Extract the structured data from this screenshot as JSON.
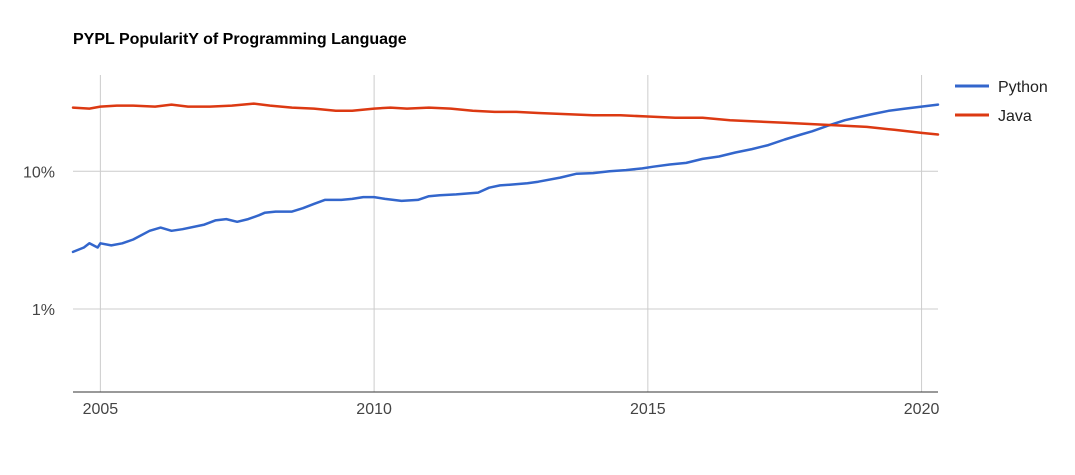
{
  "chart_data": {
    "type": "line",
    "title": "PYPL PopularitY of Programming Language",
    "xlabel": "",
    "ylabel": "",
    "y_scale": "log",
    "y_unit": "percent",
    "ylim": [
      0.25,
      50
    ],
    "xlim": [
      2004.5,
      2020.3
    ],
    "x_ticks": [
      2005,
      2010,
      2015,
      2020
    ],
    "x_tick_labels": [
      "2005",
      "2010",
      "2015",
      "2020"
    ],
    "y_ticks": [
      1,
      10
    ],
    "y_tick_labels": [
      "1%",
      "10%"
    ],
    "grid": true,
    "legend_position": "right",
    "series": [
      {
        "name": "Python",
        "color": "#3366cc",
        "x": [
          2004.5,
          2004.7,
          2004.8,
          2004.95,
          2005.0,
          2005.2,
          2005.4,
          2005.6,
          2005.9,
          2006.1,
          2006.3,
          2006.5,
          2006.9,
          2007.1,
          2007.3,
          2007.5,
          2007.7,
          2007.9,
          2008.0,
          2008.2,
          2008.5,
          2008.7,
          2008.9,
          2009.1,
          2009.4,
          2009.6,
          2009.8,
          2010.0,
          2010.2,
          2010.5,
          2010.8,
          2011.0,
          2011.2,
          2011.5,
          2011.9,
          2012.1,
          2012.3,
          2012.5,
          2012.8,
          2013.0,
          2013.4,
          2013.7,
          2014.0,
          2014.3,
          2014.6,
          2014.9,
          2015.1,
          2015.4,
          2015.7,
          2016.0,
          2016.3,
          2016.6,
          2016.9,
          2017.2,
          2017.5,
          2017.8,
          2018.0,
          2018.3,
          2018.6,
          2018.9,
          2019.1,
          2019.4,
          2019.7,
          2020.0,
          2020.3
        ],
        "values": [
          2.6,
          2.8,
          3.0,
          2.8,
          3.0,
          2.9,
          3.0,
          3.2,
          3.7,
          3.9,
          3.7,
          3.8,
          4.1,
          4.4,
          4.5,
          4.3,
          4.5,
          4.8,
          5.0,
          5.1,
          5.1,
          5.4,
          5.8,
          6.2,
          6.2,
          6.3,
          6.5,
          6.5,
          6.3,
          6.1,
          6.2,
          6.6,
          6.7,
          6.8,
          7.0,
          7.6,
          7.9,
          8.0,
          8.2,
          8.4,
          9.0,
          9.6,
          9.7,
          10.0,
          10.2,
          10.5,
          10.8,
          11.2,
          11.5,
          12.3,
          12.8,
          13.7,
          14.5,
          15.5,
          17.0,
          18.5,
          19.5,
          21.5,
          23.5,
          25.0,
          26.0,
          27.5,
          28.5,
          29.5,
          30.5
        ]
      },
      {
        "name": "Java",
        "color": "#dc3912",
        "x": [
          2004.5,
          2004.8,
          2005.0,
          2005.3,
          2005.6,
          2006.0,
          2006.3,
          2006.6,
          2007.0,
          2007.4,
          2007.8,
          2008.1,
          2008.5,
          2008.9,
          2009.3,
          2009.6,
          2010.0,
          2010.3,
          2010.6,
          2011.0,
          2011.4,
          2011.8,
          2012.2,
          2012.6,
          2013.0,
          2013.5,
          2014.0,
          2014.5,
          2015.0,
          2015.5,
          2016.0,
          2016.5,
          2017.0,
          2017.5,
          2018.0,
          2018.5,
          2019.0,
          2019.5,
          2020.0,
          2020.3
        ],
        "values": [
          29.0,
          28.5,
          29.5,
          30.0,
          30.0,
          29.5,
          30.5,
          29.5,
          29.5,
          30.0,
          31.0,
          30.0,
          29.0,
          28.5,
          27.5,
          27.5,
          28.5,
          29.0,
          28.5,
          29.0,
          28.5,
          27.5,
          27.0,
          27.0,
          26.5,
          26.0,
          25.5,
          25.5,
          25.0,
          24.5,
          24.5,
          23.5,
          23.0,
          22.5,
          22.0,
          21.5,
          21.0,
          20.0,
          19.0,
          18.5
        ]
      }
    ]
  }
}
